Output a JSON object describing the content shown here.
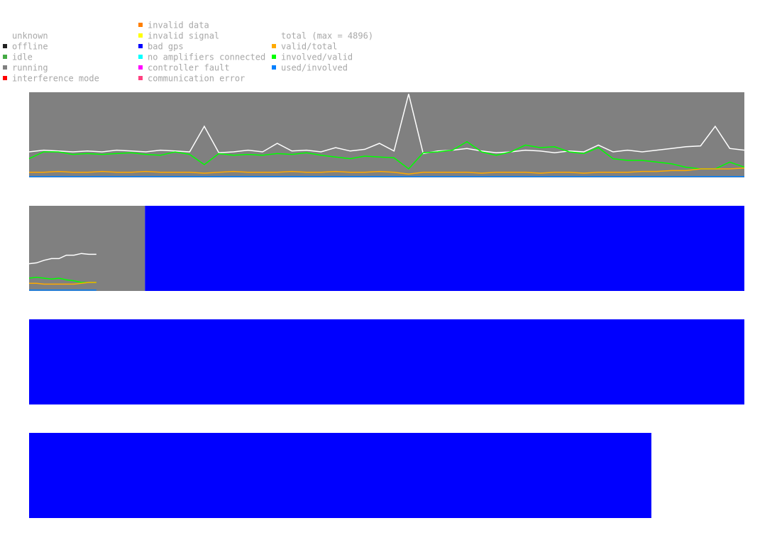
{
  "legend": {
    "status": [
      {
        "label": "unknown",
        "color": null
      },
      {
        "label": "offline",
        "color": "#222222"
      },
      {
        "label": "idle",
        "color": "#44aa44"
      },
      {
        "label": "running",
        "color": "#808080"
      },
      {
        "label": "interference mode",
        "color": "#ff0000"
      }
    ],
    "errors": [
      {
        "label": "invalid data",
        "color": "#ff7f00"
      },
      {
        "label": "invalid signal",
        "color": "#ffff00"
      },
      {
        "label": "bad gps",
        "color": "#0000ff"
      },
      {
        "label": "no amplifiers connected",
        "color": "#00ffff"
      },
      {
        "label": "controller fault",
        "color": "#ff00ff"
      },
      {
        "label": "communication error",
        "color": "#ff4080"
      }
    ],
    "lines": [
      {
        "label": "total (max = 4896)",
        "color": null
      },
      {
        "label": "valid/total",
        "color": "#ffaa00"
      },
      {
        "label": "involved/valid",
        "color": "#00ff00"
      },
      {
        "label": "used/involved",
        "color": "#0080ff"
      }
    ]
  },
  "panels": [
    {
      "segments": [
        {
          "color": "#808080",
          "start": 0,
          "end": 1
        }
      ],
      "line_span": 1,
      "lines": [
        {
          "color": "#ffffff",
          "values": [
            0.3,
            0.32,
            0.31,
            0.3,
            0.31,
            0.3,
            0.32,
            0.31,
            0.3,
            0.32,
            0.31,
            0.3,
            0.6,
            0.29,
            0.3,
            0.32,
            0.3,
            0.4,
            0.31,
            0.32,
            0.3,
            0.35,
            0.31,
            0.33,
            0.4,
            0.31,
            0.98,
            0.28,
            0.31,
            0.32,
            0.34,
            0.31,
            0.29,
            0.3,
            0.32,
            0.31,
            0.29,
            0.31,
            0.3,
            0.38,
            0.3,
            0.32,
            0.3,
            0.32,
            0.34,
            0.36,
            0.37,
            0.6,
            0.34,
            0.32
          ]
        },
        {
          "color": "#00ff00",
          "values": [
            0.22,
            0.3,
            0.3,
            0.27,
            0.28,
            0.27,
            0.28,
            0.29,
            0.27,
            0.26,
            0.3,
            0.27,
            0.15,
            0.28,
            0.26,
            0.27,
            0.26,
            0.28,
            0.27,
            0.29,
            0.26,
            0.24,
            0.22,
            0.25,
            0.24,
            0.23,
            0.1,
            0.29,
            0.3,
            0.32,
            0.42,
            0.3,
            0.26,
            0.3,
            0.38,
            0.35,
            0.36,
            0.3,
            0.28,
            0.35,
            0.22,
            0.2,
            0.2,
            0.18,
            0.16,
            0.12,
            0.1,
            0.1,
            0.18,
            0.12
          ]
        },
        {
          "color": "#ffaa00",
          "values": [
            0.06,
            0.06,
            0.07,
            0.06,
            0.06,
            0.07,
            0.06,
            0.06,
            0.07,
            0.06,
            0.06,
            0.06,
            0.05,
            0.06,
            0.07,
            0.06,
            0.06,
            0.06,
            0.07,
            0.06,
            0.06,
            0.07,
            0.06,
            0.06,
            0.07,
            0.06,
            0.04,
            0.06,
            0.06,
            0.06,
            0.06,
            0.05,
            0.06,
            0.06,
            0.06,
            0.05,
            0.06,
            0.06,
            0.05,
            0.06,
            0.06,
            0.06,
            0.07,
            0.07,
            0.08,
            0.08,
            0.1,
            0.1,
            0.1,
            0.11
          ]
        },
        {
          "color": "#0080ff",
          "values": [
            0.01,
            0.01,
            0.01,
            0.01,
            0.01,
            0.01,
            0.01,
            0.01,
            0.01,
            0.01,
            0.01,
            0.01,
            0.01,
            0.01,
            0.01,
            0.01,
            0.01,
            0.01,
            0.01,
            0.01,
            0.01,
            0.01,
            0.01,
            0.01,
            0.01,
            0.01,
            0.01,
            0.01,
            0.01,
            0.01,
            0.01,
            0.01,
            0.01,
            0.01,
            0.01,
            0.01,
            0.01,
            0.01,
            0.01,
            0.01,
            0.01,
            0.01,
            0.01,
            0.01,
            0.01,
            0.01,
            0.01,
            0.01,
            0.01,
            0.01
          ]
        }
      ]
    },
    {
      "segments": [
        {
          "color": "#808080",
          "start": 0,
          "end": 0.162
        },
        {
          "color": "#0000ff",
          "start": 0.162,
          "end": 1
        }
      ],
      "line_span": 0.094,
      "lines": [
        {
          "color": "#ffffff",
          "values": [
            0.32,
            0.33,
            0.36,
            0.38,
            0.38,
            0.42,
            0.42,
            0.44,
            0.43,
            0.43
          ]
        },
        {
          "color": "#00ff00",
          "values": [
            0.15,
            0.16,
            0.15,
            0.14,
            0.15,
            0.13,
            0.12,
            0.1,
            0.1,
            0.1
          ]
        },
        {
          "color": "#ffaa00",
          "values": [
            0.09,
            0.09,
            0.08,
            0.08,
            0.08,
            0.08,
            0.08,
            0.09,
            0.1,
            0.1
          ]
        },
        {
          "color": "#0080ff",
          "values": [
            0.01,
            0.01,
            0.01,
            0.01,
            0.01,
            0.01,
            0.01,
            0.01,
            0.01,
            0.01
          ]
        }
      ]
    },
    {
      "segments": [
        {
          "color": "#0000ff",
          "start": 0,
          "end": 1
        }
      ],
      "line_span": 0,
      "lines": []
    },
    {
      "segments": [
        {
          "color": "#0000ff",
          "start": 0,
          "end": 0.87
        }
      ],
      "line_span": 0,
      "lines": []
    }
  ]
}
